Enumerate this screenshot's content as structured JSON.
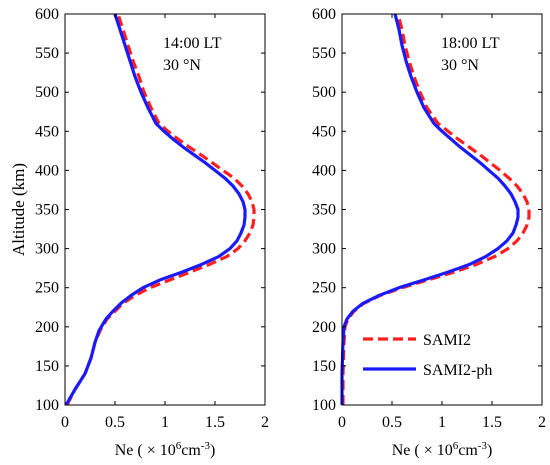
{
  "chart_data": [
    {
      "type": "line",
      "annotation": [
        "14:00 LT",
        "30 °N"
      ],
      "xlabel": "Ne ( × 10⁶cm⁻³)",
      "ylabel": "Altitude (km)",
      "xlim": [
        0,
        2
      ],
      "ylim": [
        100,
        600
      ],
      "xticks": [
        0,
        0.5,
        1,
        1.5,
        2
      ],
      "xticklabels": [
        "0",
        "0.5",
        "1",
        "1.5",
        "2"
      ],
      "yticks": [
        100,
        150,
        200,
        250,
        300,
        350,
        400,
        450,
        500,
        550,
        600
      ],
      "grid": false,
      "series": [
        {
          "name": "SAMI2",
          "color": "#ff1f1f",
          "dash": true,
          "points": [
            [
              0.02,
              100
            ],
            [
              0.1,
              120
            ],
            [
              0.2,
              140
            ],
            [
              0.26,
              160
            ],
            [
              0.3,
              180
            ],
            [
              0.35,
              195
            ],
            [
              0.42,
              210
            ],
            [
              0.5,
              220
            ],
            [
              0.58,
              230
            ],
            [
              0.7,
              240
            ],
            [
              0.85,
              250
            ],
            [
              1.05,
              260
            ],
            [
              1.25,
              270
            ],
            [
              1.45,
              280
            ],
            [
              1.62,
              290
            ],
            [
              1.73,
              300
            ],
            [
              1.8,
              310
            ],
            [
              1.85,
              320
            ],
            [
              1.88,
              330
            ],
            [
              1.89,
              340
            ],
            [
              1.89,
              350
            ],
            [
              1.87,
              360
            ],
            [
              1.83,
              370
            ],
            [
              1.77,
              380
            ],
            [
              1.69,
              390
            ],
            [
              1.58,
              400
            ],
            [
              1.47,
              410
            ],
            [
              1.36,
              420
            ],
            [
              1.24,
              430
            ],
            [
              1.13,
              440
            ],
            [
              1.03,
              450
            ],
            [
              0.94,
              460
            ],
            [
              0.86,
              480
            ],
            [
              0.79,
              500
            ],
            [
              0.74,
              520
            ],
            [
              0.68,
              540
            ],
            [
              0.63,
              560
            ],
            [
              0.58,
              580
            ],
            [
              0.53,
              600
            ]
          ]
        },
        {
          "name": "SAMI2-ph",
          "color": "#1a1aff",
          "dash": false,
          "points": [
            [
              0.01,
              100
            ],
            [
              0.1,
              120
            ],
            [
              0.2,
              140
            ],
            [
              0.26,
              160
            ],
            [
              0.3,
              180
            ],
            [
              0.34,
              195
            ],
            [
              0.41,
              210
            ],
            [
              0.48,
              220
            ],
            [
              0.56,
              230
            ],
            [
              0.66,
              240
            ],
            [
              0.78,
              250
            ],
            [
              0.95,
              260
            ],
            [
              1.17,
              270
            ],
            [
              1.37,
              280
            ],
            [
              1.54,
              290
            ],
            [
              1.65,
              300
            ],
            [
              1.72,
              310
            ],
            [
              1.76,
              320
            ],
            [
              1.79,
              330
            ],
            [
              1.8,
              340
            ],
            [
              1.8,
              350
            ],
            [
              1.78,
              360
            ],
            [
              1.74,
              370
            ],
            [
              1.68,
              380
            ],
            [
              1.6,
              390
            ],
            [
              1.5,
              400
            ],
            [
              1.4,
              410
            ],
            [
              1.29,
              420
            ],
            [
              1.18,
              430
            ],
            [
              1.08,
              440
            ],
            [
              0.99,
              450
            ],
            [
              0.91,
              460
            ],
            [
              0.83,
              480
            ],
            [
              0.76,
              500
            ],
            [
              0.7,
              520
            ],
            [
              0.65,
              540
            ],
            [
              0.6,
              560
            ],
            [
              0.55,
              580
            ],
            [
              0.5,
              600
            ]
          ]
        }
      ]
    },
    {
      "type": "line",
      "annotation": [
        "18:00 LT",
        "30 °N"
      ],
      "xlabel": "Ne ( × 10⁶cm⁻³)",
      "ylabel": "",
      "xlim": [
        0,
        2
      ],
      "ylim": [
        100,
        600
      ],
      "xticks": [
        0,
        0.5,
        1,
        1.5,
        2
      ],
      "xticklabels": [
        "0",
        "0.5",
        "1",
        "1.5",
        "2"
      ],
      "yticks": [
        100,
        150,
        200,
        250,
        300,
        350,
        400,
        450,
        500,
        550,
        600
      ],
      "grid": false,
      "legend_position": "bottom-right",
      "series": [
        {
          "name": "SAMI2",
          "color": "#ff1f1f",
          "dash": true,
          "points": [
            [
              0.01,
              100
            ],
            [
              0.01,
              140
            ],
            [
              0.02,
              180
            ],
            [
              0.03,
              200
            ],
            [
              0.06,
              210
            ],
            [
              0.12,
              220
            ],
            [
              0.22,
              230
            ],
            [
              0.38,
              240
            ],
            [
              0.6,
              250
            ],
            [
              0.86,
              260
            ],
            [
              1.12,
              270
            ],
            [
              1.35,
              280
            ],
            [
              1.53,
              290
            ],
            [
              1.66,
              300
            ],
            [
              1.75,
              310
            ],
            [
              1.81,
              320
            ],
            [
              1.85,
              330
            ],
            [
              1.87,
              340
            ],
            [
              1.87,
              350
            ],
            [
              1.85,
              360
            ],
            [
              1.81,
              370
            ],
            [
              1.75,
              380
            ],
            [
              1.67,
              390
            ],
            [
              1.58,
              400
            ],
            [
              1.48,
              410
            ],
            [
              1.38,
              420
            ],
            [
              1.27,
              430
            ],
            [
              1.16,
              440
            ],
            [
              1.06,
              450
            ],
            [
              0.96,
              460
            ],
            [
              0.85,
              480
            ],
            [
              0.78,
              500
            ],
            [
              0.72,
              520
            ],
            [
              0.67,
              540
            ],
            [
              0.63,
              560
            ],
            [
              0.6,
              580
            ],
            [
              0.56,
              600
            ]
          ]
        },
        {
          "name": "SAMI2-ph",
          "color": "#1a1aff",
          "dash": false,
          "points": [
            [
              0,
              100
            ],
            [
              0,
              140
            ],
            [
              0.01,
              180
            ],
            [
              0.02,
              200
            ],
            [
              0.05,
              210
            ],
            [
              0.11,
              220
            ],
            [
              0.21,
              230
            ],
            [
              0.37,
              240
            ],
            [
              0.57,
              250
            ],
            [
              0.82,
              260
            ],
            [
              1.06,
              270
            ],
            [
              1.28,
              280
            ],
            [
              1.44,
              290
            ],
            [
              1.56,
              300
            ],
            [
              1.65,
              310
            ],
            [
              1.71,
              320
            ],
            [
              1.74,
              330
            ],
            [
              1.76,
              340
            ],
            [
              1.76,
              350
            ],
            [
              1.73,
              360
            ],
            [
              1.69,
              370
            ],
            [
              1.63,
              380
            ],
            [
              1.56,
              390
            ],
            [
              1.47,
              400
            ],
            [
              1.38,
              410
            ],
            [
              1.28,
              420
            ],
            [
              1.18,
              430
            ],
            [
              1.09,
              440
            ],
            [
              1.0,
              450
            ],
            [
              0.92,
              460
            ],
            [
              0.82,
              480
            ],
            [
              0.75,
              500
            ],
            [
              0.69,
              520
            ],
            [
              0.64,
              540
            ],
            [
              0.6,
              560
            ],
            [
              0.57,
              580
            ],
            [
              0.53,
              600
            ]
          ]
        }
      ]
    }
  ]
}
